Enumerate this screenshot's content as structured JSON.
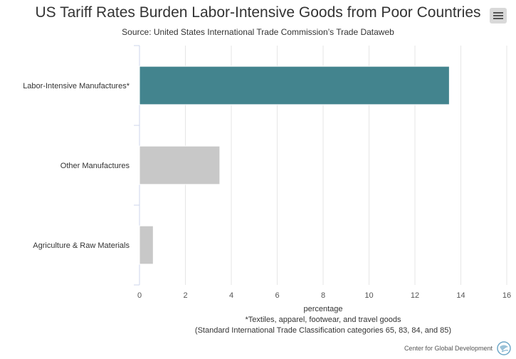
{
  "title": "US Tariff Rates Burden Labor-Intensive Goods from Poor Countries",
  "subtitle": "Source: United States International Trade Commission’s Trade Dataweb",
  "credit": "Center for Global Development",
  "menu_icon": "hamburger-menu-icon",
  "chart_data": {
    "type": "bar",
    "orientation": "horizontal",
    "categories": [
      "Labor-Intensive Manufactures*",
      "Other Manufactures",
      "Agriculture & Raw Materials"
    ],
    "values": [
      13.5,
      3.5,
      0.6
    ],
    "colors": [
      "#43848e",
      "#c8c8c8",
      "#c8c8c8"
    ],
    "xlabel": "percentage",
    "xlabel_notes": [
      "*Textiles, apparel, footwear, and travel goods",
      "(Standard International Trade Classification categories 65, 83, 84, and 85)"
    ],
    "xlim": [
      0,
      16
    ],
    "xticks": [
      "0",
      "2",
      "4",
      "6",
      "8",
      "10",
      "12",
      "14",
      "16"
    ],
    "grid": true
  }
}
